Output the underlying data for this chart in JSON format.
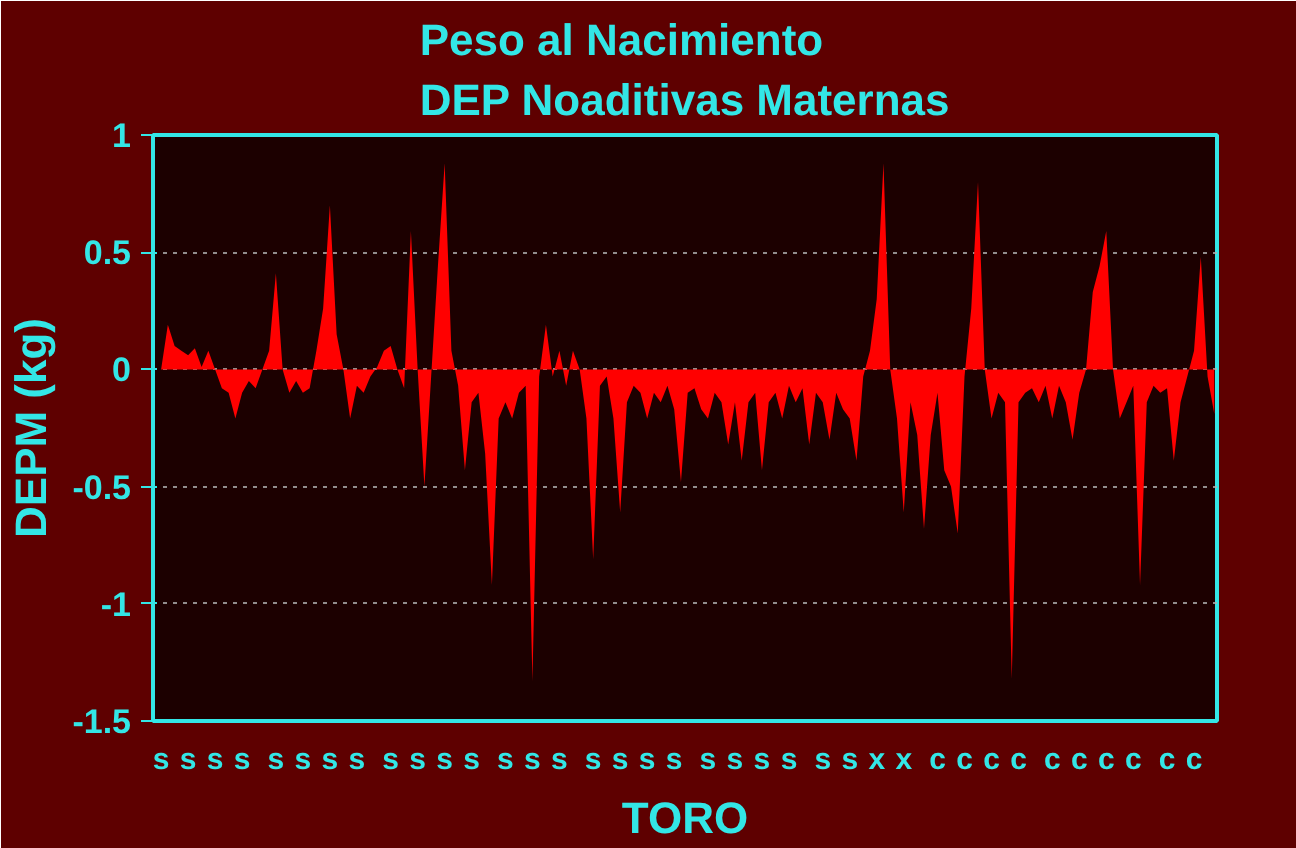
{
  "chart_data": {
    "type": "area",
    "title": "Peso al Nacimiento\nDEP Noaditivas Maternas",
    "xlabel": "TORO",
    "ylabel": "DEPM (kg)",
    "color": "#ff0000",
    "grid": "y",
    "ylim": [
      -1.5,
      1
    ],
    "yticks": [
      -1.5,
      -1,
      -0.5,
      0,
      0.5,
      1
    ],
    "categories": [
      "s",
      null,
      null,
      null,
      "s",
      null,
      null,
      null,
      "s",
      null,
      null,
      null,
      "s",
      null,
      null,
      null,
      null,
      "s",
      null,
      null,
      null,
      "s",
      null,
      null,
      null,
      "s",
      null,
      null,
      null,
      "s",
      null,
      null,
      null,
      null,
      "s",
      null,
      null,
      null,
      "s",
      null,
      null,
      null,
      "s",
      null,
      null,
      null,
      "s",
      null,
      null,
      null,
      null,
      "s",
      null,
      null,
      null,
      "s",
      null,
      null,
      null,
      "s",
      null,
      null,
      null,
      null,
      "s",
      null,
      null,
      null,
      "s",
      null,
      null,
      null,
      "s",
      null,
      null,
      null,
      "s",
      null,
      null,
      null,
      null,
      "s",
      null,
      null,
      null,
      "s",
      null,
      null,
      null,
      "s",
      null,
      null,
      null,
      "s",
      null,
      null,
      null,
      null,
      "s",
      null,
      null,
      null,
      "s",
      null,
      null,
      null,
      "x",
      null,
      null,
      null,
      "x",
      null,
      null,
      null,
      null,
      "c",
      null,
      null,
      null,
      "c",
      null,
      null,
      null,
      "c",
      null,
      null,
      null,
      "c",
      null,
      null,
      null,
      null,
      "c",
      null,
      null,
      null,
      "c",
      null,
      null,
      null,
      "c",
      null,
      null,
      null,
      "c",
      null,
      null,
      null,
      null,
      "c",
      null,
      null,
      null,
      "c",
      null,
      null,
      null
    ],
    "values": [
      0,
      0.19,
      0.1,
      0.08,
      0.06,
      0.09,
      0.01,
      0.08,
      0,
      -0.08,
      -0.1,
      -0.21,
      -0.1,
      -0.05,
      -0.08,
      0,
      0.08,
      0.41,
      0,
      -0.1,
      -0.05,
      -0.1,
      -0.08,
      0.08,
      0.26,
      0.7,
      0.15,
      0,
      -0.21,
      -0.07,
      -0.1,
      -0.03,
      0.01,
      0.08,
      0.1,
      0,
      -0.08,
      0.59,
      0,
      -0.5,
      -0.03,
      0.44,
      0.88,
      0.08,
      -0.07,
      -0.43,
      -0.14,
      -0.1,
      -0.36,
      -0.92,
      -0.21,
      -0.14,
      -0.21,
      -0.1,
      -0.07,
      -1.33,
      -0.03,
      0.19,
      -0.03,
      0.08,
      -0.07,
      0.08,
      0,
      -0.21,
      -0.81,
      -0.07,
      -0.03,
      -0.21,
      -0.61,
      -0.14,
      -0.07,
      -0.1,
      -0.21,
      -0.1,
      -0.14,
      -0.07,
      -0.17,
      -0.48,
      -0.1,
      -0.08,
      -0.17,
      -0.21,
      -0.1,
      -0.14,
      -0.32,
      -0.14,
      -0.39,
      -0.14,
      -0.1,
      -0.43,
      -0.14,
      -0.1,
      -0.21,
      -0.07,
      -0.14,
      -0.08,
      -0.32,
      -0.1,
      -0.14,
      -0.3,
      -0.1,
      -0.17,
      -0.21,
      -0.39,
      -0.03,
      0.08,
      0.3,
      0.88,
      0,
      -0.21,
      -0.61,
      -0.14,
      -0.28,
      -0.68,
      -0.28,
      -0.1,
      -0.43,
      -0.5,
      -0.7,
      -0.03,
      0.26,
      0.8,
      0,
      -0.21,
      -0.1,
      -0.14,
      -1.32,
      -0.14,
      -0.1,
      -0.08,
      -0.14,
      -0.07,
      -0.21,
      -0.07,
      -0.14,
      -0.3,
      -0.1,
      0,
      0.33,
      0.44,
      0.59,
      0,
      -0.21,
      -0.14,
      -0.07,
      -0.92,
      -0.14,
      -0.07,
      -0.1,
      -0.08,
      -0.39,
      -0.14,
      -0.03,
      0.08,
      0.48,
      -0.03,
      -0.19
    ]
  }
}
